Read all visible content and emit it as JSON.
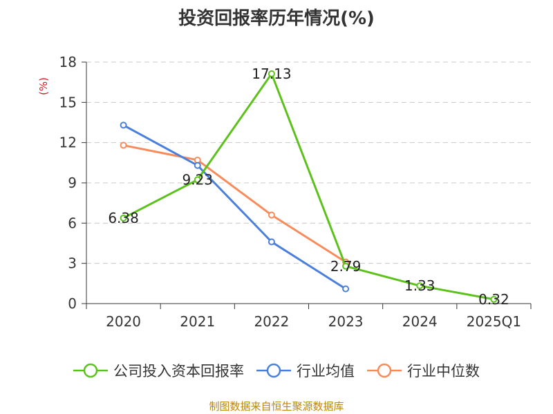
{
  "title": "投资回报率历年情况(%)",
  "source": "制图数据来自恒生聚源数据库",
  "chart_data": {
    "type": "line",
    "title": "投资回报率历年情况(%)",
    "ylabel": "(%)",
    "xlabel": "",
    "categories": [
      "2020",
      "2021",
      "2022",
      "2023",
      "2024",
      "2025Q1"
    ],
    "ylim": [
      0,
      18
    ],
    "yticks": [
      0,
      3,
      6,
      9,
      12,
      15,
      18
    ],
    "grid": true,
    "legend_position": "bottom",
    "series": [
      {
        "name": "公司投入资本回报率",
        "color": "#5cc21b",
        "values": [
          6.38,
          9.23,
          17.13,
          2.79,
          1.33,
          0.32
        ],
        "labels": true
      },
      {
        "name": "行业均值",
        "color": "#4a7fdc",
        "values": [
          13.3,
          10.3,
          4.6,
          1.1,
          null,
          null
        ],
        "labels": false
      },
      {
        "name": "行业中位数",
        "color": "#f98b5a",
        "values": [
          11.8,
          10.7,
          6.6,
          3.1,
          null,
          null
        ],
        "labels": false
      }
    ]
  }
}
